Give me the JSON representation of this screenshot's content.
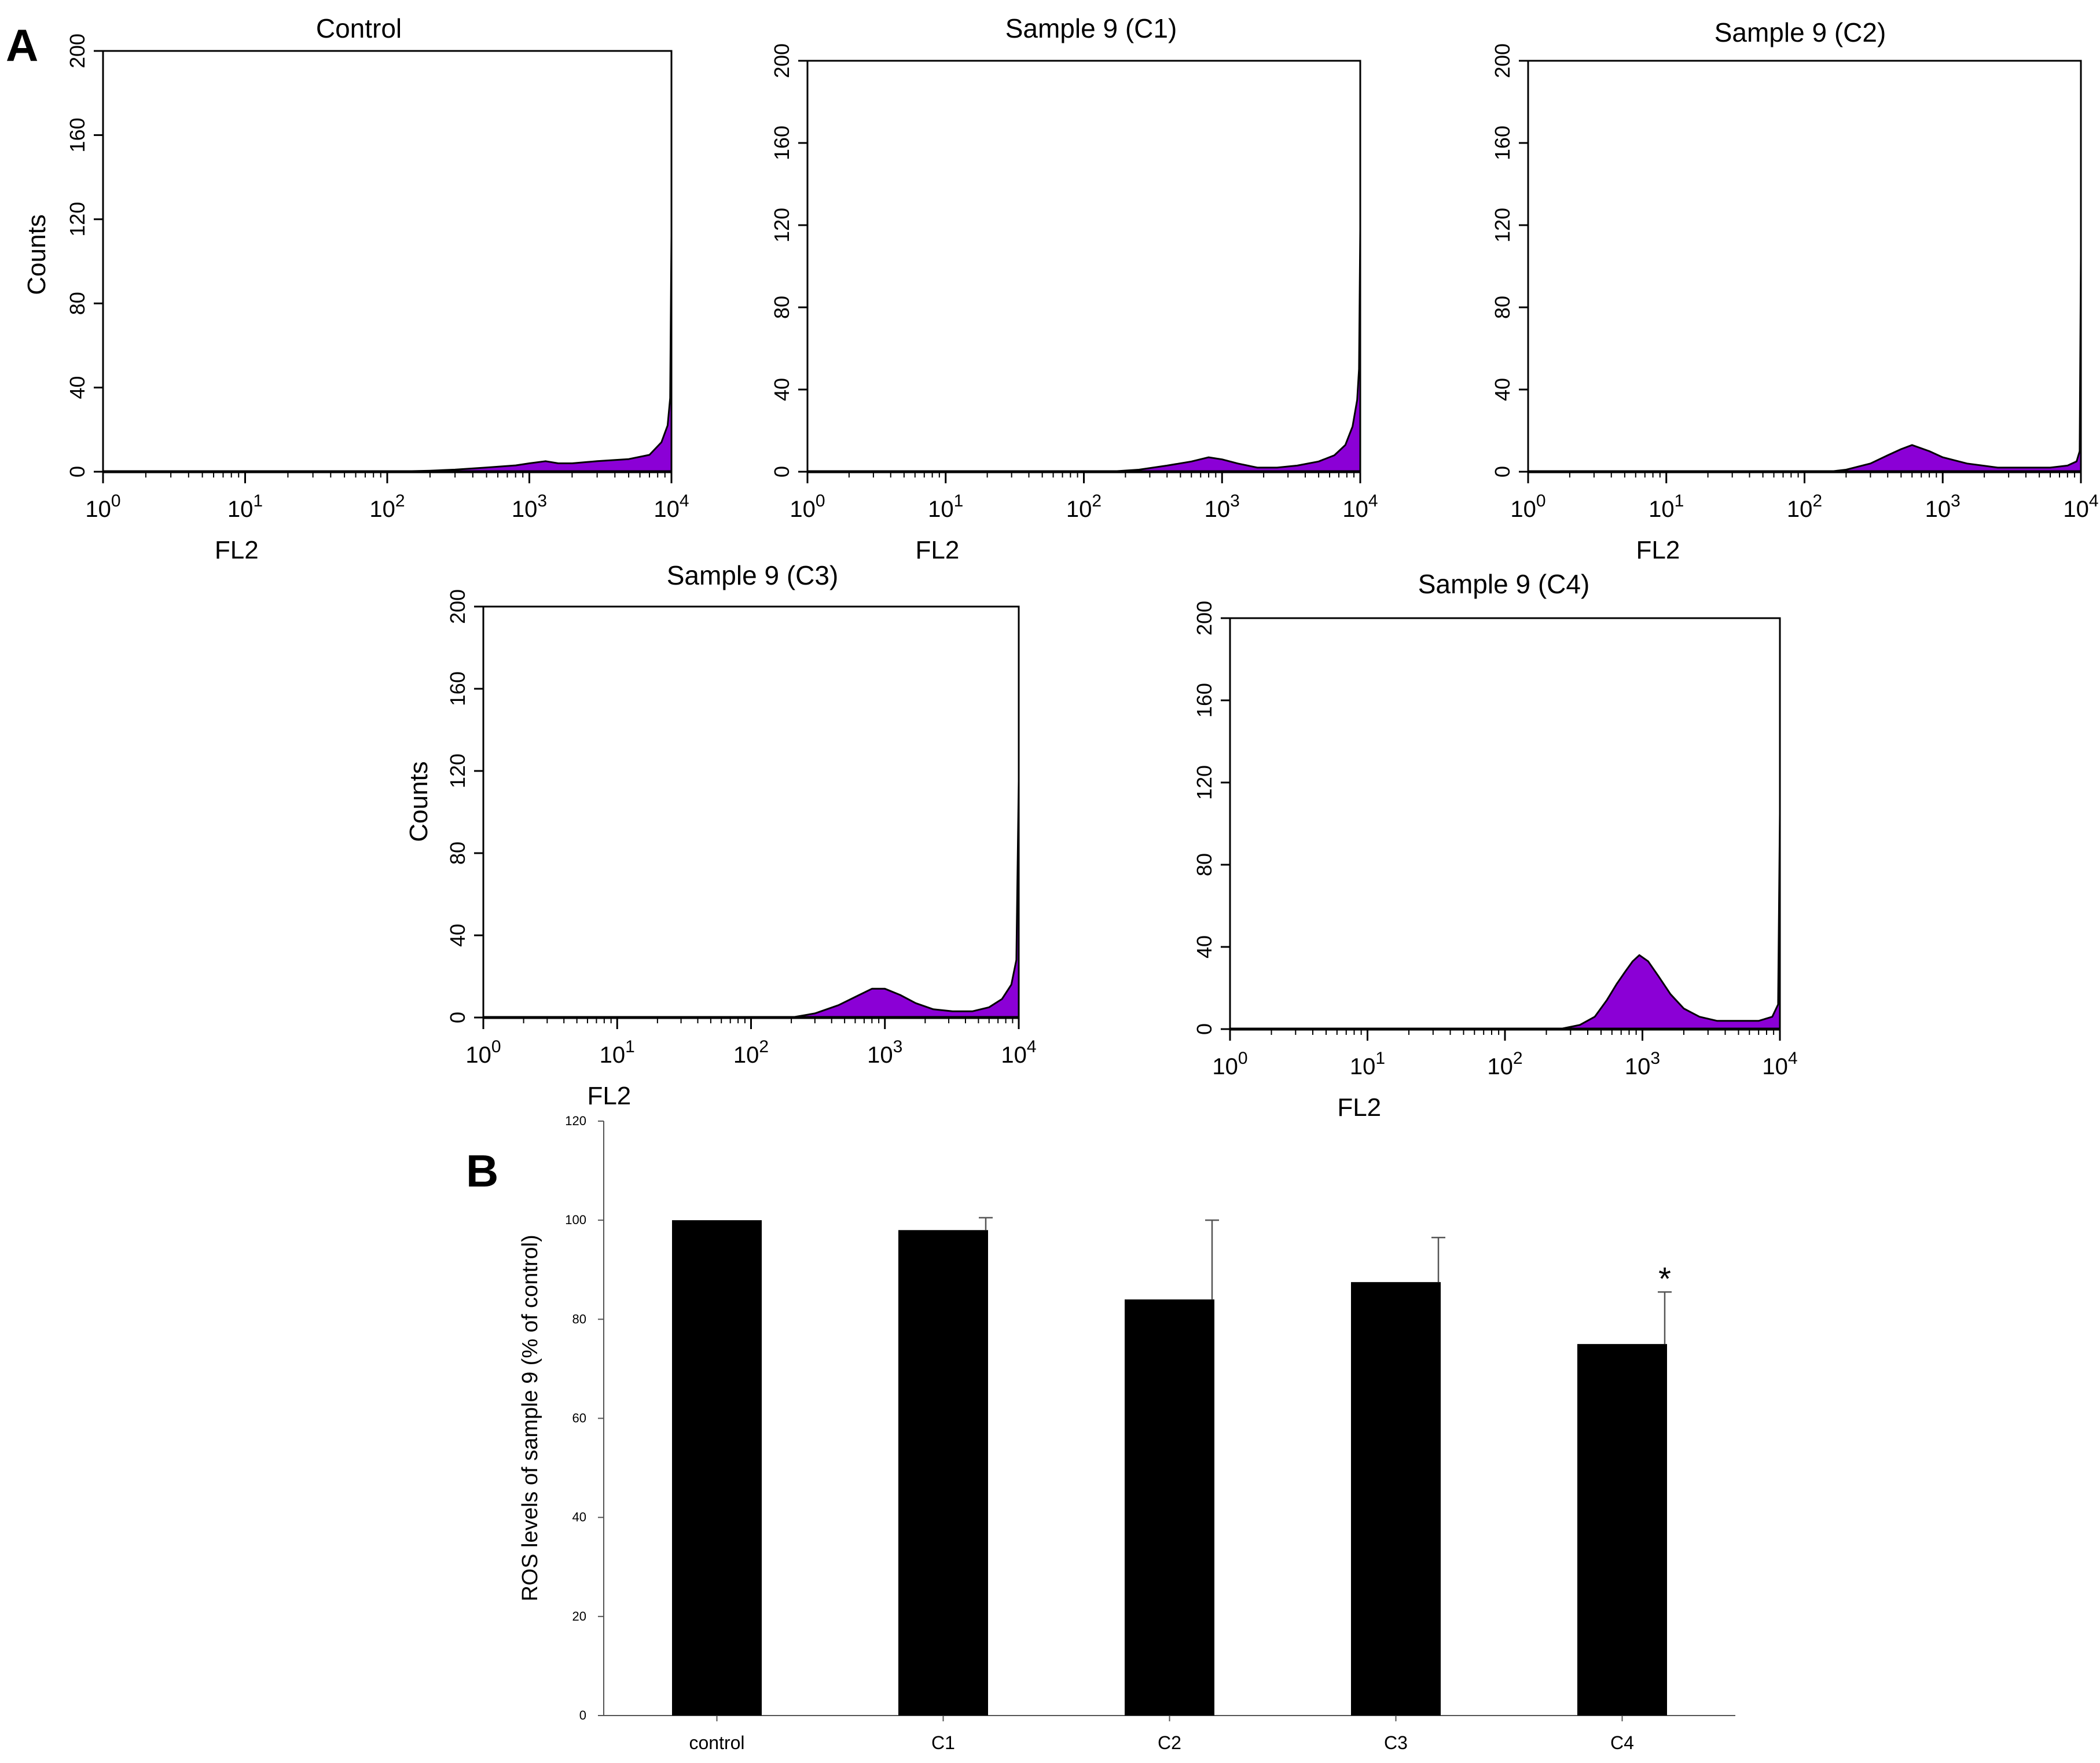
{
  "panel_labels": {
    "a": "A",
    "b": "B"
  },
  "colors": {
    "histogram_fill": "#8B00D6",
    "histogram_outline": "#000000",
    "bar_fill": "#000000",
    "axis": "#000000"
  },
  "chart_data": [
    {
      "type": "area",
      "title": "Control",
      "xlabel": "FL2",
      "ylabel": "Counts",
      "xscale": "log",
      "xlim": [
        1,
        10000
      ],
      "ylim": [
        0,
        200
      ],
      "yticks": [
        "0",
        "40",
        "80",
        "120",
        "160",
        "200"
      ],
      "xtick_bases": [
        "10",
        "10",
        "10",
        "10",
        "10"
      ],
      "xtick_exponents": [
        "0",
        "1",
        "2",
        "3",
        "4"
      ],
      "series": [
        {
          "name": "Control",
          "x": [
            1,
            100,
            200,
            300,
            500,
            800,
            1000,
            1300,
            1600,
            2000,
            3000,
            5000,
            7000,
            8500,
            9400,
            9800,
            10000
          ],
          "values": [
            0,
            0,
            0.5,
            1,
            2,
            3,
            4,
            5,
            4,
            4,
            5,
            6,
            8,
            14,
            22,
            35,
            112
          ]
        }
      ]
    },
    {
      "type": "area",
      "title": "Sample 9 (C1)",
      "xlabel": "FL2",
      "ylabel": "",
      "xscale": "log",
      "xlim": [
        1,
        10000
      ],
      "ylim": [
        0,
        200
      ],
      "yticks": [
        "0",
        "40",
        "80",
        "120",
        "160",
        "200"
      ],
      "xtick_bases": [
        "10",
        "10",
        "10",
        "10",
        "10"
      ],
      "xtick_exponents": [
        "0",
        "1",
        "2",
        "3",
        "4"
      ],
      "series": [
        {
          "name": "Sample 9 (C1)",
          "x": [
            1,
            150,
            250,
            400,
            600,
            800,
            1000,
            1300,
            1800,
            2500,
            3500,
            5000,
            6500,
            7800,
            8800,
            9500,
            9800,
            10000
          ],
          "values": [
            0,
            0,
            1,
            3,
            5,
            7,
            6,
            4,
            2,
            2,
            3,
            5,
            8,
            13,
            22,
            35,
            50,
            118
          ]
        }
      ]
    },
    {
      "type": "area",
      "title": "Sample 9 (C2)",
      "xlabel": "FL2",
      "ylabel": "",
      "xscale": "log",
      "xlim": [
        1,
        10000
      ],
      "ylim": [
        0,
        200
      ],
      "yticks": [
        "0",
        "40",
        "80",
        "120",
        "160",
        "200"
      ],
      "xtick_bases": [
        "10",
        "10",
        "10",
        "10",
        "10"
      ],
      "xtick_exponents": [
        "0",
        "1",
        "2",
        "3",
        "4"
      ],
      "series": [
        {
          "name": "Sample 9 (C2)",
          "x": [
            1,
            150,
            200,
            300,
            400,
            500,
            600,
            800,
            1000,
            1500,
            2500,
            4000,
            6000,
            8000,
            9300,
            9800,
            10000
          ],
          "values": [
            0,
            0,
            1,
            4,
            8,
            11,
            13,
            10,
            7,
            4,
            2,
            2,
            2,
            3,
            5,
            10,
            105
          ]
        }
      ]
    },
    {
      "type": "area",
      "title": "Sample 9 (C3)",
      "xlabel": "FL2",
      "ylabel": "Counts",
      "xscale": "log",
      "xlim": [
        1,
        10000
      ],
      "ylim": [
        0,
        200
      ],
      "yticks": [
        "0",
        "40",
        "80",
        "120",
        "160",
        "200"
      ],
      "xtick_bases": [
        "10",
        "10",
        "10",
        "10",
        "10"
      ],
      "xtick_exponents": [
        "0",
        "1",
        "2",
        "3",
        "4"
      ],
      "series": [
        {
          "name": "Sample 9 (C3)",
          "x": [
            1,
            200,
            300,
            450,
            600,
            800,
            1000,
            1300,
            1700,
            2300,
            3200,
            4500,
            6000,
            7500,
            8800,
            9600,
            10000
          ],
          "values": [
            0,
            0,
            2,
            6,
            10,
            14,
            14,
            11,
            7,
            4,
            3,
            3,
            5,
            9,
            16,
            28,
            115
          ]
        }
      ]
    },
    {
      "type": "area",
      "title": "Sample 9 (C4)",
      "xlabel": "FL2",
      "ylabel": "",
      "xscale": "log",
      "xlim": [
        1,
        10000
      ],
      "ylim": [
        0,
        200
      ],
      "yticks": [
        "0",
        "40",
        "80",
        "120",
        "160",
        "200"
      ],
      "xtick_bases": [
        "10",
        "10",
        "10",
        "10",
        "10"
      ],
      "xtick_exponents": [
        "0",
        "1",
        "2",
        "3",
        "4"
      ],
      "series": [
        {
          "name": "Sample 9 (C4)",
          "x": [
            1,
            250,
            350,
            450,
            550,
            650,
            750,
            850,
            950,
            1100,
            1300,
            1600,
            2000,
            2600,
            3500,
            5000,
            7000,
            8800,
            9700,
            10000
          ],
          "values": [
            0,
            0,
            2,
            6,
            14,
            22,
            28,
            33,
            36,
            33,
            26,
            17,
            10,
            6,
            4,
            4,
            4,
            6,
            12,
            105
          ]
        }
      ]
    },
    {
      "type": "bar",
      "title": "",
      "xlabel": "",
      "ylabel": "ROS levels of sample 9  (% of control)",
      "categories": [
        "control",
        "C1",
        "C2",
        "C3",
        "C4"
      ],
      "values": [
        100,
        98,
        84,
        87.5,
        75
      ],
      "errors": [
        0,
        2.5,
        16,
        9,
        10.5
      ],
      "annotations": [
        {
          "category": "C4",
          "text": "*"
        }
      ],
      "ylim": [
        0,
        120
      ],
      "yticks": [
        "0",
        "20",
        "40",
        "60",
        "80",
        "100",
        "120"
      ]
    }
  ]
}
